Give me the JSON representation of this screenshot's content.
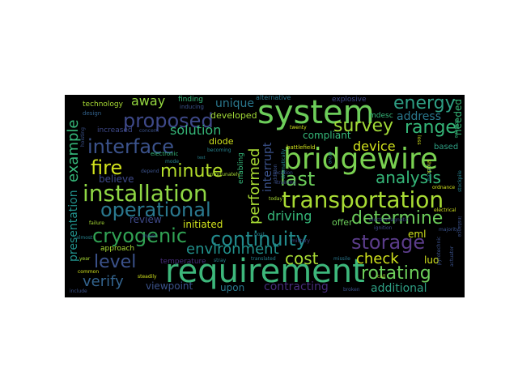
{
  "words": {
    "requirement": "requirement",
    "system": "system",
    "bridgewire": "bridgewire",
    "installation": "installation",
    "transportation": "transportation",
    "operational": "operational",
    "cryogenic": "cryogenic",
    "continuity": "continuity",
    "interface": "interface",
    "proposed": "proposed",
    "determine": "determine",
    "storage": "storage",
    "energy": "energy",
    "survey": "survey",
    "minute": "minute",
    "rotating": "rotating",
    "analysis": "analysis",
    "range": "range",
    "fire": "fire",
    "last": "last",
    "level": "level",
    "verify": "verify",
    "environment": "environment",
    "cost": "cost",
    "check": "check",
    "driving": "driving",
    "solution": "solution",
    "performed": "performed",
    "example": "example",
    "device": "device",
    "away": "away",
    "presentation": "presentation",
    "address": "address",
    "contracting": "contracting",
    "additional": "additional",
    "initiated": "initiated",
    "review": "review",
    "believe": "believe",
    "viewpoint": "viewpoint",
    "compliant": "compliant",
    "interrupt": "interrupt",
    "needed": "needed",
    "unique": "unique",
    "technology": "technology",
    "finding": "finding",
    "explosive": "explosive",
    "alternative": "alternative",
    "developed": "developed",
    "increased": "increased",
    "approach": "approach",
    "upon": "upon",
    "offer": "offer",
    "eml": "eml",
    "luo": "luo",
    "based": "based",
    "mdesc": "mdesc",
    "diode": "diode",
    "enabling": "enabling",
    "electronic": "electronic",
    "concern": "concern",
    "design": "design",
    "inducing": "inducing",
    "twenty": "twenty",
    "battlefield": "battlefield",
    "unfortunately": "unfortunately",
    "depend": "depend",
    "mode": "mode",
    "ordnance": "ordnance",
    "electrical": "electrical",
    "electromagnetic": "electromagnetic",
    "ignition": "ignition",
    "majority": "majority",
    "military": "military",
    "stray": "stray",
    "translated": "translated",
    "broken": "broken",
    "steadily": "steadily",
    "common": "common",
    "year": "year",
    "include": "include",
    "failure": "failure",
    "major": "major",
    "post": "post",
    "call": "call",
    "today": "today",
    "training": "training",
    "temperature": "temperature",
    "almost": "almost",
    "becoming": "becoming",
    "teal": "test",
    "pyrotechnic": "pyrotechnic",
    "hazard": "hazard",
    "missile": "missile",
    "location": "location",
    "addition": "addition",
    "dramatically": "dramatically",
    "drive": "drive",
    "loss": "loss",
    "hoisting": "hoisting",
    "shock": "shock",
    "achieve": "achieve",
    "stockpile": "stockpile",
    "actuator": "actuator",
    "instance": "instance"
  },
  "colors": {
    "cloud_bg": "#000000",
    "page_bg": "#ffffff",
    "green": "#6ccd5a",
    "lightgreen": "#a2da37",
    "teal": "#26828e",
    "tealgreen": "#35b779",
    "blue": "#3b528b",
    "purple": "#472c7a",
    "yellow": "#d0e11c",
    "seafoam": "#1f9e89"
  }
}
